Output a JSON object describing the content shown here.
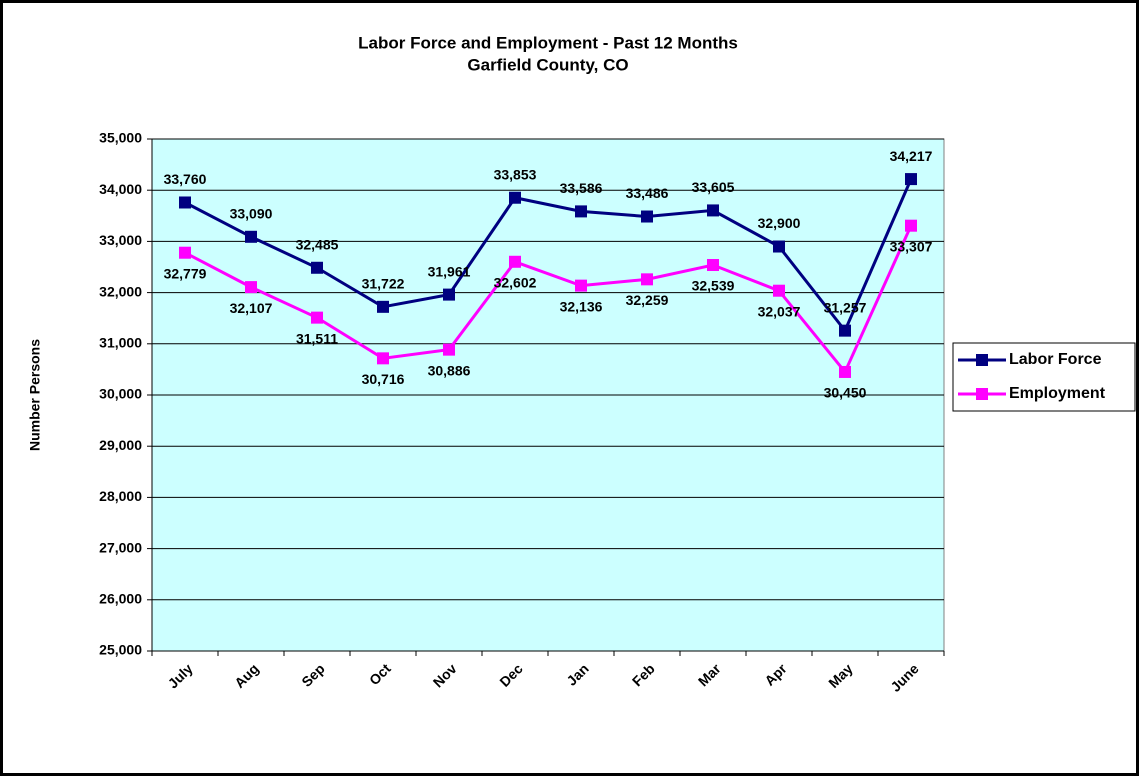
{
  "chart_data": {
    "type": "line",
    "title": "Labor Force and Employment - Past 12 Months",
    "subtitle": "Garfield County, CO",
    "y_label": "Number Persons",
    "categories": [
      "July",
      "Aug",
      "Sep",
      "Oct",
      "Nov",
      "Dec",
      "Jan",
      "Feb",
      "Mar",
      "Apr",
      "May",
      "June"
    ],
    "series": [
      {
        "name": "Labor Force",
        "color": "#000080",
        "values": [
          33760,
          33090,
          32485,
          31722,
          31961,
          33853,
          33586,
          33486,
          33605,
          32900,
          31257,
          34217
        ],
        "value_labels": [
          "33,760",
          "33,090",
          "32,485",
          "31,722",
          "31,961",
          "33,853",
          "33,586",
          "33,486",
          "33,605",
          "32,900",
          "31,257",
          "34,217"
        ]
      },
      {
        "name": "Employment",
        "color": "#ff00ff",
        "values": [
          32779,
          32107,
          31511,
          30716,
          30886,
          32602,
          32136,
          32259,
          32539,
          32037,
          30450,
          33307
        ],
        "value_labels": [
          "32,779",
          "32,107",
          "31,511",
          "30,716",
          "30,886",
          "32,602",
          "32,136",
          "32,259",
          "32,539",
          "32,037",
          "30,450",
          "33,307"
        ]
      }
    ],
    "ylim": [
      25000,
      35000
    ],
    "yticks": [
      {
        "value": 25000,
        "label": "25,000"
      },
      {
        "value": 26000,
        "label": "26,000"
      },
      {
        "value": 27000,
        "label": "27,000"
      },
      {
        "value": 28000,
        "label": "28,000"
      },
      {
        "value": 29000,
        "label": "29,000"
      },
      {
        "value": 30000,
        "label": "30,000"
      },
      {
        "value": 31000,
        "label": "31,000"
      },
      {
        "value": 32000,
        "label": "32,000"
      },
      {
        "value": 33000,
        "label": "33,000"
      },
      {
        "value": 34000,
        "label": "34,000"
      },
      {
        "value": 35000,
        "label": "35,000"
      }
    ],
    "grid": true,
    "legend": "right",
    "plot_background": "#ccffff"
  }
}
